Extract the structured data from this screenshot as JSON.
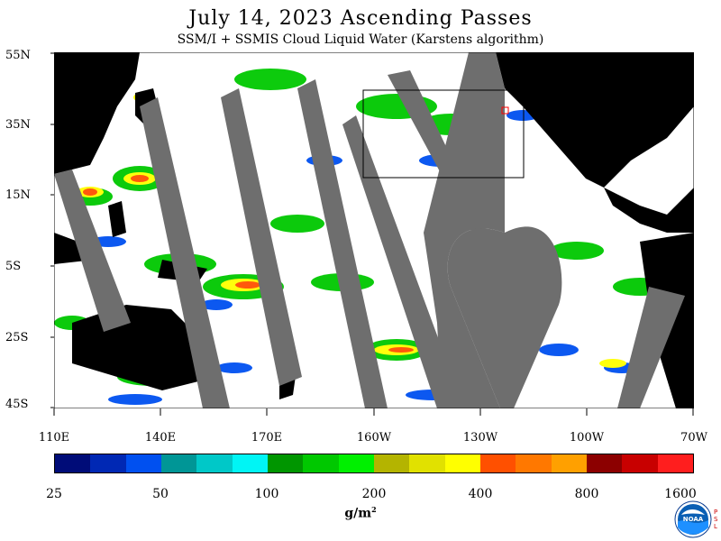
{
  "header": {
    "title": "July 14, 2023  Ascending Passes",
    "subtitle": "SSM/I + SSMIS Cloud Liquid Water (Karstens algorithm)"
  },
  "map": {
    "latitude_labels": [
      "55N",
      "35N",
      "15N",
      "5S",
      "25S",
      "45S"
    ],
    "longitude_labels": [
      "110E",
      "140E",
      "170E",
      "160W",
      "130W",
      "100W",
      "70W"
    ],
    "colors": {
      "land": "#000000",
      "no_data_swath_gap": "#6e6e6e",
      "clear_ocean": "#ffffff"
    }
  },
  "colorbar": {
    "colors": [
      "#000c78",
      "#0028b4",
      "#0050f0",
      "#009696",
      "#00c8c8",
      "#00f5f5",
      "#009600",
      "#00c800",
      "#00f000",
      "#b4b400",
      "#e1e100",
      "#ffff00",
      "#ff5000",
      "#ff7800",
      "#ffa000",
      "#8c0000",
      "#c80000",
      "#ff1e1e"
    ],
    "tick_labels": [
      "25",
      "50",
      "100",
      "200",
      "400",
      "800",
      "1600"
    ],
    "units": "g/m",
    "units_superscript": "2"
  },
  "logo": {
    "name": "noaa-logo",
    "text": "NOAA",
    "side_text": "PSL"
  }
}
